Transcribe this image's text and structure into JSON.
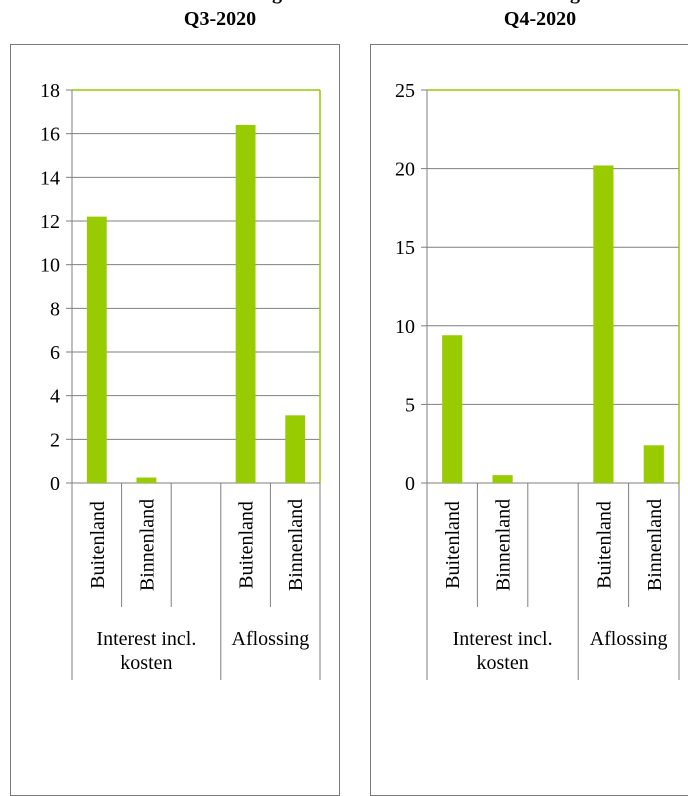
{
  "colors": {
    "bar": "#99cc00",
    "plot_border": "#99cc00",
    "grid": "#7f7f7f",
    "frame": "#7a7a7a"
  },
  "chart_data": [
    {
      "type": "bar",
      "title": "Q3-2020",
      "title_partial_above": "g",
      "groups": [
        {
          "label_lines": [
            "Interest incl.",
            "kosten"
          ],
          "categories": [
            "Buitenland",
            "Binnenland"
          ]
        },
        {
          "label_lines": [
            "Aflossing"
          ],
          "categories": [
            "Buitenland",
            "Binnenland"
          ]
        }
      ],
      "categories": [
        "Buitenland",
        "Binnenland",
        "Buitenland",
        "Binnenland"
      ],
      "values": [
        12.2,
        0.25,
        16.4,
        3.1
      ],
      "ylim": [
        0,
        18
      ],
      "yticks": [
        0,
        2,
        4,
        6,
        8,
        10,
        12,
        14,
        16,
        18
      ],
      "grid": true,
      "legend": "none"
    },
    {
      "type": "bar",
      "title": "Q4-2020",
      "title_partial_above": "g",
      "groups": [
        {
          "label_lines": [
            "Interest incl.",
            "kosten"
          ],
          "categories": [
            "Buitenland",
            "Binnenland"
          ]
        },
        {
          "label_lines": [
            "Aflossing"
          ],
          "categories": [
            "Buitenland",
            "Binnenland"
          ]
        }
      ],
      "categories": [
        "Buitenland",
        "Binnenland",
        "Buitenland",
        "Binnenland"
      ],
      "values": [
        9.4,
        0.5,
        20.2,
        2.4
      ],
      "ylim": [
        0,
        25
      ],
      "yticks": [
        0,
        5,
        10,
        15,
        20,
        25
      ],
      "grid": true,
      "legend": "none"
    }
  ]
}
